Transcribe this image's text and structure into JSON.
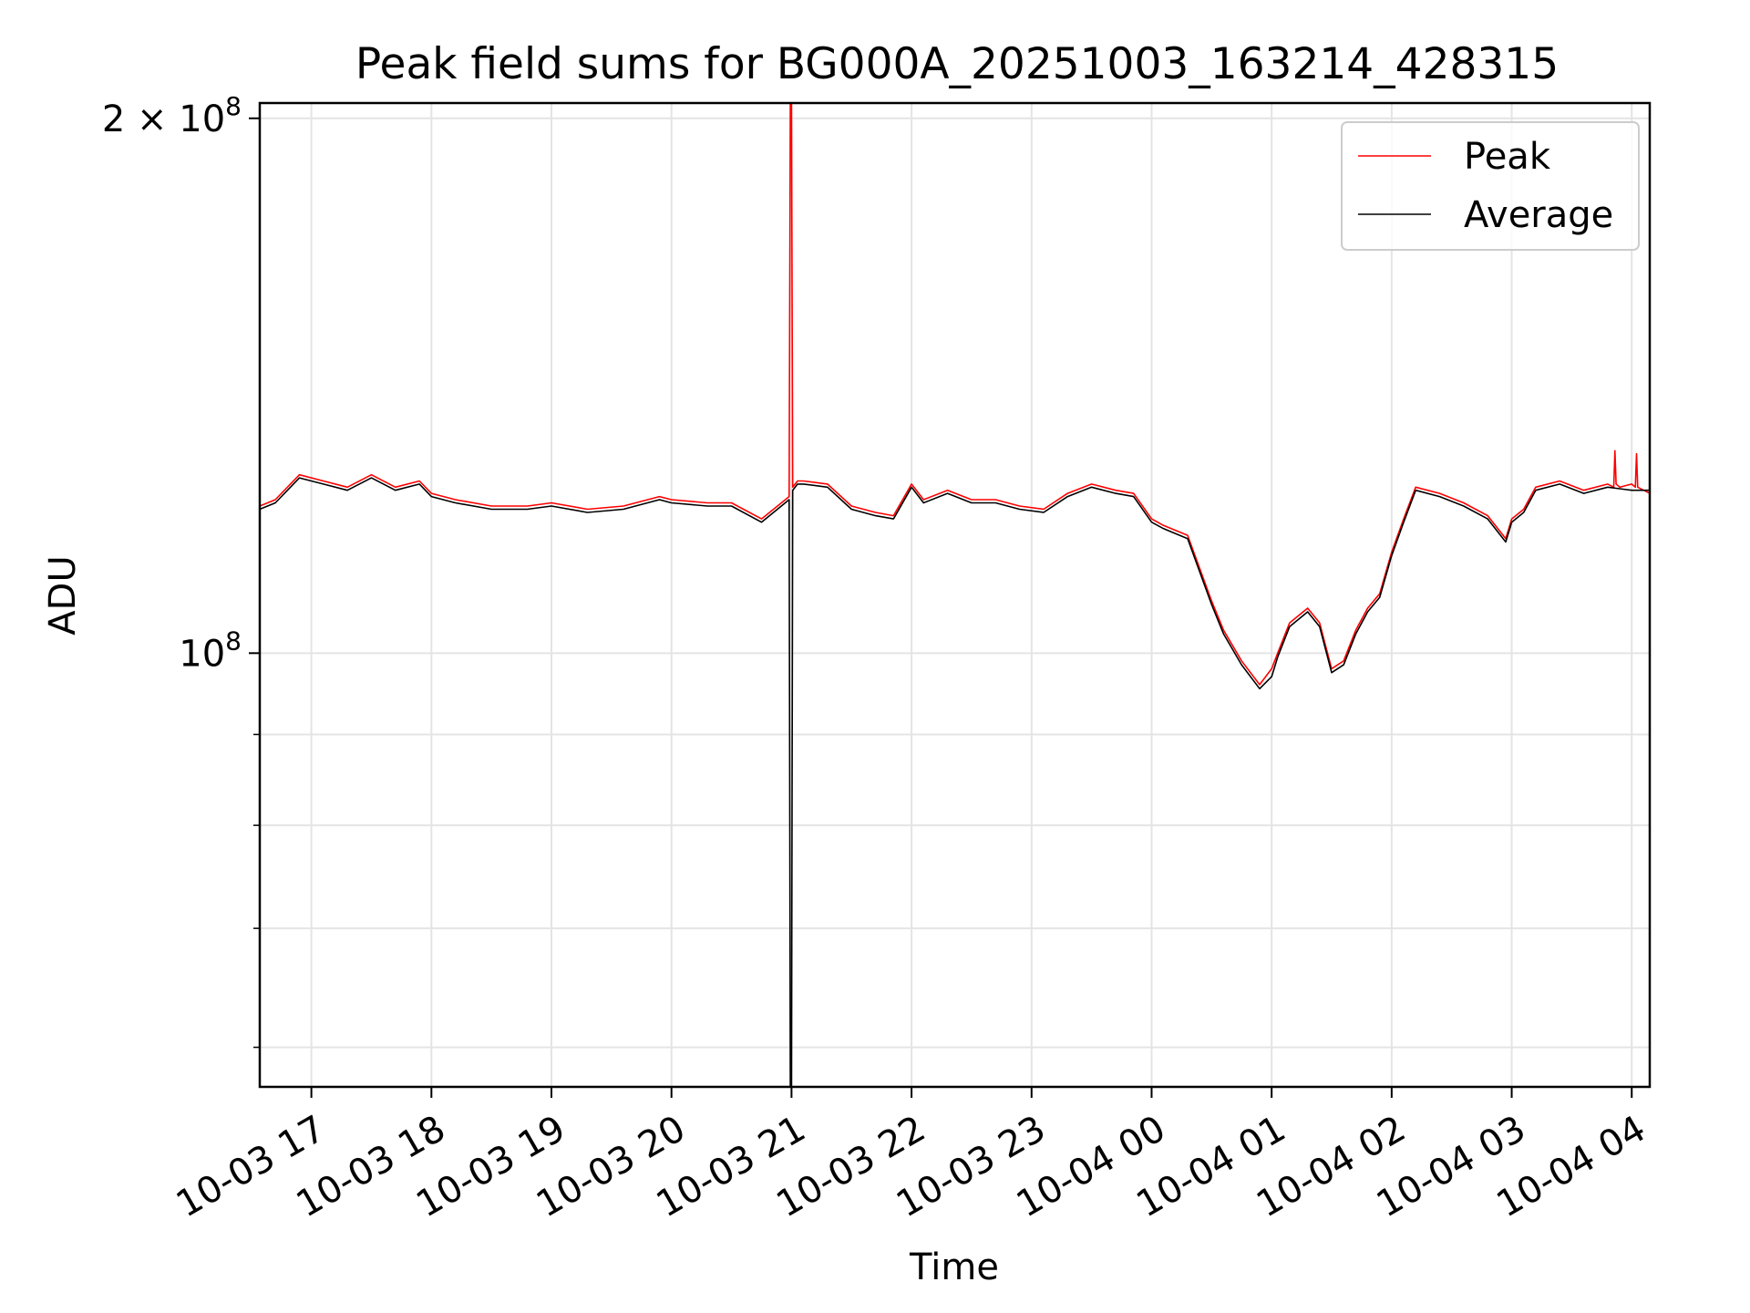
{
  "chart_data": {
    "type": "line",
    "title": "Peak field sums for BG000A_20251003_163214_428315",
    "xlabel": "Time",
    "ylabel": "ADU",
    "yscale": "log",
    "ylim": [
      57000000,
      204000000
    ],
    "xlim_hours": [
      16.57,
      28.15
    ],
    "grid": true,
    "legend": {
      "position": "top-right",
      "entries": [
        "Peak",
        "Average"
      ]
    },
    "x_ticks": [
      {
        "hour": 17,
        "label": "10-03 17"
      },
      {
        "hour": 18,
        "label": "10-03 18"
      },
      {
        "hour": 19,
        "label": "10-03 19"
      },
      {
        "hour": 20,
        "label": "10-03 20"
      },
      {
        "hour": 21,
        "label": "10-03 21"
      },
      {
        "hour": 22,
        "label": "10-03 22"
      },
      {
        "hour": 23,
        "label": "10-03 23"
      },
      {
        "hour": 24,
        "label": "10-04 00"
      },
      {
        "hour": 25,
        "label": "10-04 01"
      },
      {
        "hour": 26,
        "label": "10-04 02"
      },
      {
        "hour": 27,
        "label": "10-04 03"
      },
      {
        "hour": 28,
        "label": "10-04 04"
      }
    ],
    "y_major_ticks": [
      {
        "value": 100000000,
        "base": "10",
        "exp": "8"
      },
      {
        "value": 200000000,
        "base": "2 × 10",
        "exp": "8"
      }
    ],
    "y_minor_ticks": [
      60000000,
      70000000,
      80000000,
      90000000
    ],
    "series": [
      {
        "name": "Peak",
        "color": "#ff0000",
        "x_hours": [
          16.57,
          16.7,
          16.9,
          17.1,
          17.3,
          17.5,
          17.7,
          17.9,
          18.0,
          18.2,
          18.5,
          18.8,
          19.0,
          19.3,
          19.6,
          19.9,
          20.0,
          20.3,
          20.5,
          20.75,
          20.98,
          20.99,
          21.0,
          21.01,
          21.05,
          21.1,
          21.3,
          21.5,
          21.7,
          21.85,
          22.0,
          22.1,
          22.3,
          22.5,
          22.7,
          22.9,
          23.1,
          23.3,
          23.5,
          23.7,
          23.85,
          24.0,
          24.1,
          24.3,
          24.5,
          24.6,
          24.75,
          24.9,
          25.0,
          25.05,
          25.15,
          25.3,
          25.4,
          25.5,
          25.6,
          25.7,
          25.8,
          25.9,
          26.0,
          26.1,
          26.2,
          26.4,
          26.6,
          26.8,
          26.95,
          27.0,
          27.1,
          27.2,
          27.4,
          27.6,
          27.8,
          27.85,
          27.86,
          27.87,
          27.9,
          28.0,
          28.03,
          28.04,
          28.05,
          28.15
        ],
        "values": [
          121000000,
          122000000,
          126000000,
          125000000,
          124000000,
          126000000,
          124000000,
          125000000,
          123000000,
          122000000,
          121000000,
          121000000,
          121500000,
          120500000,
          121000000,
          122500000,
          122000000,
          121500000,
          121500000,
          119000000,
          122500000,
          210000000,
          210000000,
          124000000,
          125000000,
          125000000,
          124500000,
          121000000,
          120000000,
          119500000,
          124500000,
          122000000,
          123500000,
          122000000,
          122000000,
          121000000,
          120500000,
          123000000,
          124500000,
          123500000,
          123000000,
          119000000,
          118000000,
          116500000,
          107000000,
          103000000,
          99000000,
          96000000,
          98000000,
          100000000,
          104000000,
          106000000,
          104000000,
          98000000,
          99000000,
          103000000,
          106000000,
          108000000,
          114000000,
          119000000,
          124000000,
          123000000,
          121500000,
          119500000,
          116000000,
          119000000,
          120500000,
          124000000,
          125000000,
          123500000,
          124500000,
          124000000,
          130000000,
          124500000,
          124000000,
          124500000,
          124000000,
          129500000,
          124000000,
          123000000
        ]
      },
      {
        "name": "Average",
        "color": "#000000",
        "x_hours": [
          16.57,
          16.7,
          16.9,
          17.1,
          17.3,
          17.5,
          17.7,
          17.9,
          18.0,
          18.2,
          18.5,
          18.8,
          19.0,
          19.3,
          19.6,
          19.9,
          20.0,
          20.3,
          20.5,
          20.75,
          20.98,
          20.99,
          21.0,
          21.01,
          21.05,
          21.1,
          21.3,
          21.5,
          21.7,
          21.85,
          22.0,
          22.1,
          22.3,
          22.5,
          22.7,
          22.9,
          23.1,
          23.3,
          23.5,
          23.7,
          23.85,
          24.0,
          24.1,
          24.3,
          24.5,
          24.6,
          24.75,
          24.9,
          25.0,
          25.05,
          25.15,
          25.3,
          25.4,
          25.5,
          25.6,
          25.7,
          25.8,
          25.9,
          26.0,
          26.1,
          26.2,
          26.4,
          26.6,
          26.8,
          26.95,
          27.0,
          27.1,
          27.2,
          27.4,
          27.6,
          27.8,
          28.0,
          28.15
        ],
        "values": [
          120500000,
          121500000,
          125500000,
          124500000,
          123500000,
          125500000,
          123500000,
          124500000,
          122500000,
          121500000,
          120500000,
          120500000,
          121000000,
          120000000,
          120500000,
          122000000,
          121500000,
          121000000,
          121000000,
          118500000,
          122000000,
          55000000,
          55000000,
          123500000,
          124500000,
          124500000,
          124000000,
          120500000,
          119500000,
          119000000,
          124000000,
          121500000,
          123000000,
          121500000,
          121500000,
          120500000,
          120000000,
          122500000,
          124000000,
          123000000,
          122500000,
          118500000,
          117500000,
          116000000,
          106500000,
          102500000,
          98500000,
          95500000,
          97000000,
          99500000,
          103500000,
          105500000,
          103500000,
          97500000,
          98500000,
          102500000,
          105500000,
          107500000,
          113500000,
          118500000,
          123500000,
          122500000,
          121000000,
          119000000,
          115500000,
          118500000,
          120000000,
          123500000,
          124500000,
          123000000,
          124000000,
          123500000,
          123500000
        ]
      }
    ]
  }
}
